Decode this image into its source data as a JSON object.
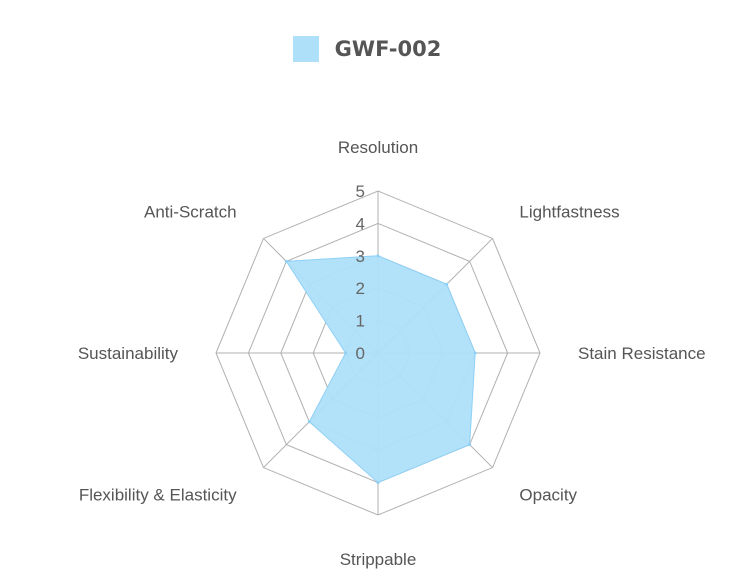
{
  "chart_data": {
    "type": "radar",
    "categories": [
      "Resolution",
      "Lightfastness",
      "Stain Resistance",
      "Opacity",
      "Strippable",
      "Flexibility & Elasticity",
      "Sustainability",
      "Anti-Scratch"
    ],
    "series": [
      {
        "name": "GWF-002",
        "values": [
          3,
          3,
          3,
          4,
          4,
          3,
          1,
          4
        ]
      }
    ],
    "r_ticks": [
      0,
      1,
      2,
      3,
      4,
      5
    ],
    "r_range": [
      0,
      5
    ],
    "legend_position": "top",
    "colors": {
      "fill": "#aee0fa",
      "stroke": "#8fd0f5",
      "grid": "#b0b0b0",
      "text": "#555555"
    }
  }
}
